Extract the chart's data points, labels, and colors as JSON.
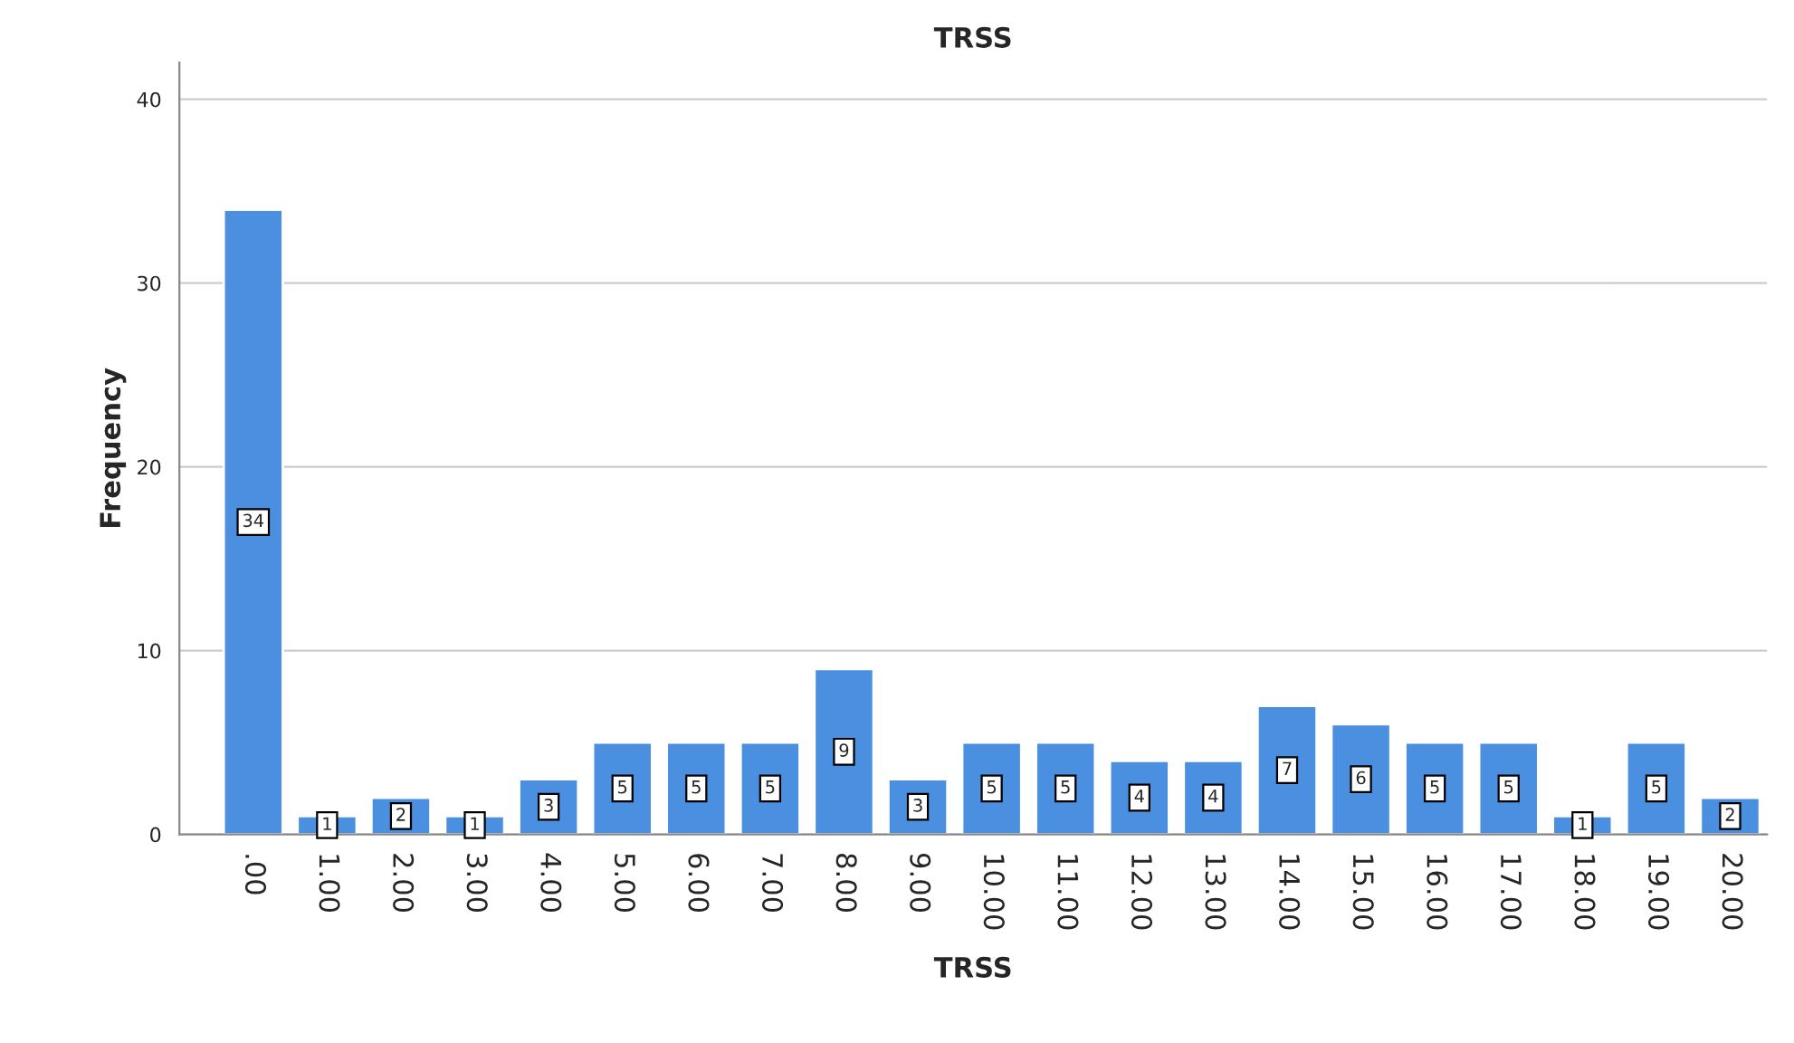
{
  "chart_data": {
    "type": "bar",
    "title": "TRSS",
    "xlabel": "TRSS",
    "ylabel": "Frequency",
    "categories": [
      ".00",
      "1.00",
      "2.00",
      "3.00",
      "4.00",
      "5.00",
      "6.00",
      "7.00",
      "8.00",
      "9.00",
      "10.00",
      "11.00",
      "12.00",
      "13.00",
      "14.00",
      "15.00",
      "16.00",
      "17.00",
      "18.00",
      "19.00",
      "20.00"
    ],
    "values": [
      34,
      1,
      2,
      1,
      3,
      5,
      5,
      5,
      9,
      3,
      5,
      5,
      4,
      4,
      7,
      6,
      5,
      5,
      1,
      5,
      2
    ],
    "color": "#4a8fe0",
    "ylim": [
      0,
      42
    ],
    "yticks": [
      0,
      10,
      20,
      30,
      40
    ],
    "grid": "y",
    "data_labels": true
  }
}
